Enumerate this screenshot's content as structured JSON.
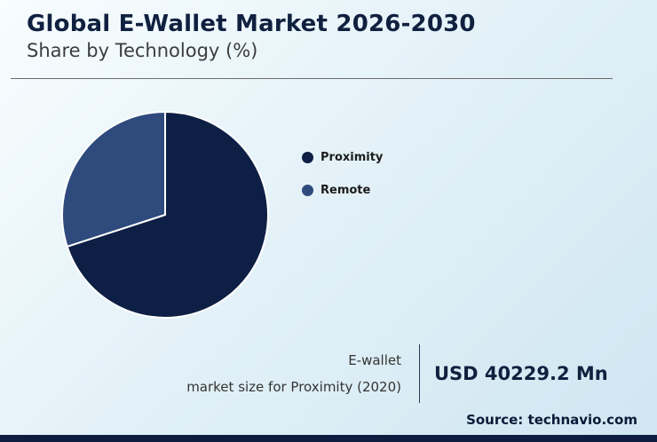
{
  "header": {
    "title": "Global E-Wallet Market 2026-2030",
    "subtitle": "Share by Technology (%)"
  },
  "chart_data": {
    "type": "pie",
    "title": "Global E-Wallet Market 2026-2030 — Share by Technology (%)",
    "labels": [
      "Proximity",
      "Remote"
    ],
    "values": [
      70,
      30
    ],
    "colors": [
      "#0e1f45",
      "#2f4a7d"
    ],
    "start_angle_deg": 0,
    "direction": "clockwise",
    "legend_position": "right",
    "slice_border_color": "#ffffff"
  },
  "annotation": {
    "line1": "E-wallet",
    "line2": "market size for Proximity (2020)",
    "value": "USD 40229.2 Mn"
  },
  "source": "Source: technavio.com",
  "colors": {
    "accent_dark": "#0d1c3f",
    "background_top": "#f8fdfe",
    "background_bottom": "#cfe6f1"
  }
}
